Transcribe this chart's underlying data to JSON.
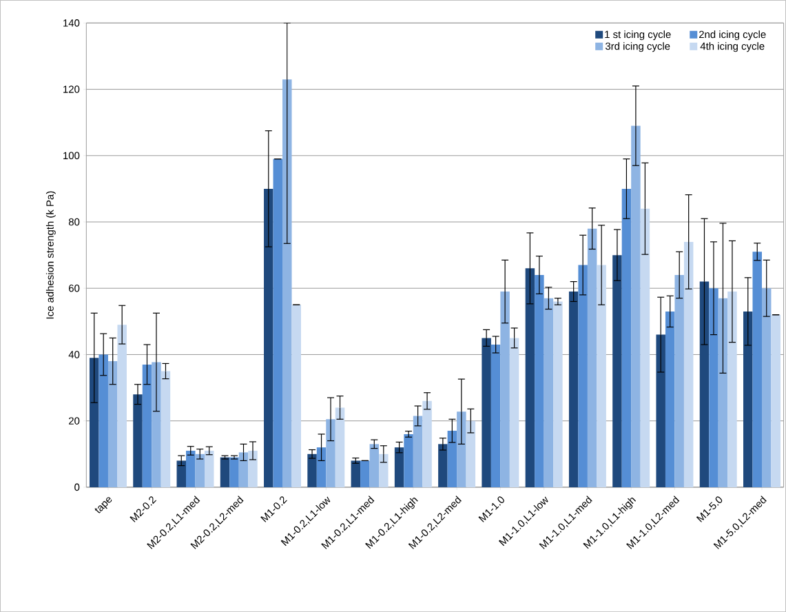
{
  "chart_data": {
    "type": "bar",
    "ylabel": "Ice adhesion strength (k Pa)",
    "categories": [
      "tape",
      "M2-0.2",
      "M2-0.2,L1-med",
      "M2-0.2,L2-med",
      "M1-0.2",
      "M1-0.2,L1-low",
      "M1-0.2,L1-med",
      "M1-0.2,L1-high",
      "M1-0.2,L2-med",
      "M1-1.0",
      "M1-1.0,L1-low",
      "M1-1.0,L1-med",
      "M1-1.0,L1-high",
      "M1-1.0,L2-med",
      "M1-5.0",
      "M1-5.0,L2-med"
    ],
    "series": [
      {
        "name": "1 st icing cycle",
        "color": "#1f497d",
        "values": [
          39,
          28,
          8,
          9,
          90,
          10,
          8,
          12,
          13,
          45,
          66,
          59,
          70,
          46,
          62,
          53
        ],
        "errors": [
          13.5,
          3,
          1.5,
          0.5,
          17.5,
          1.3,
          0.8,
          1.6,
          1.8,
          2.5,
          10.7,
          3,
          7.7,
          11.3,
          19,
          10.2
        ]
      },
      {
        "name": "2nd icing cycle",
        "color": "#558ed5",
        "values": [
          40,
          37,
          11,
          9,
          99,
          12,
          8,
          16,
          17,
          43,
          64,
          67,
          90,
          53,
          60,
          71
        ],
        "errors": [
          6.3,
          6,
          1.3,
          0.5,
          0,
          4,
          0,
          0.9,
          3.5,
          2.5,
          5.7,
          9,
          9,
          4.7,
          14,
          2.6
        ]
      },
      {
        "name": "3rd icing cycle",
        "color": "#8eb4e3",
        "values": [
          38,
          37.7,
          10,
          10.5,
          123,
          20.5,
          13,
          21.5,
          22.8,
          59,
          57,
          78,
          109,
          64,
          57,
          60
        ],
        "errors": [
          7,
          14.8,
          1.5,
          2.5,
          [
            73.5,
            140
          ],
          6.5,
          1.3,
          3,
          9.8,
          9.5,
          3.3,
          6.2,
          12,
          7,
          22.6,
          8.5
        ]
      },
      {
        "name": "4th icing cycle",
        "color": "#c6d9f1",
        "values": [
          49,
          35,
          11,
          11,
          55,
          24,
          10,
          26,
          20,
          45,
          56,
          67,
          84,
          74,
          59,
          52
        ],
        "errors": [
          5.8,
          2.3,
          1.2,
          2.7,
          0,
          3.5,
          2.5,
          2.5,
          3.6,
          3,
          1,
          12,
          13.8,
          14.2,
          15.3,
          0
        ]
      }
    ],
    "ylim": [
      0,
      140
    ],
    "yticks": [
      0,
      20,
      40,
      60,
      80,
      100,
      120,
      140
    ],
    "grid": "y",
    "legend": "top right"
  }
}
